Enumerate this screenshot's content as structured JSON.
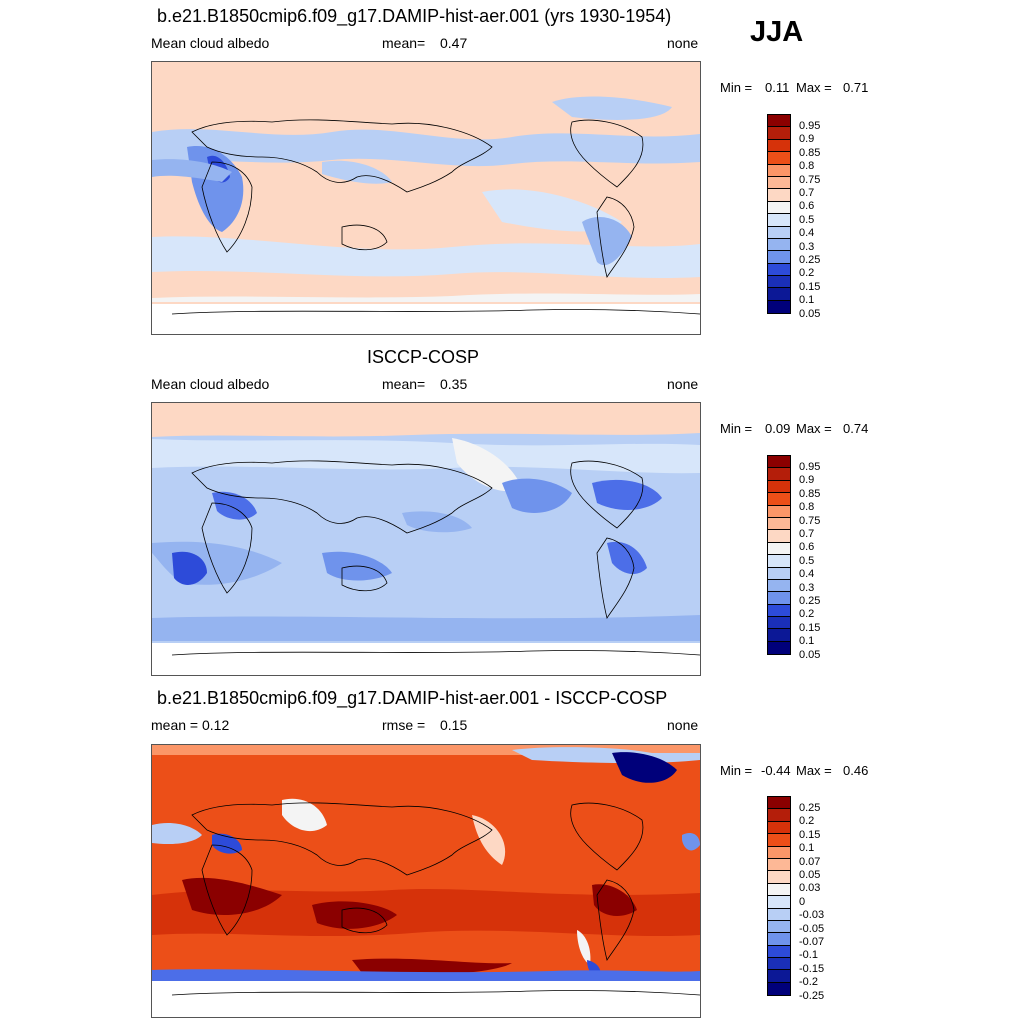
{
  "season": "JJA",
  "palettes": {
    "abs": [
      "#8b0000",
      "#b41e0a",
      "#d6320a",
      "#ec4f18",
      "#f5743f",
      "#fb9668",
      "#fdb896",
      "#fdd8c4",
      "#f4f4f4",
      "#d7e6fa",
      "#b8cff5",
      "#95b4f0",
      "#6f93ec",
      "#4c6ee8",
      "#2d4bd9",
      "#1a2fb8",
      "#0c1896",
      "#00007a"
    ],
    "diff": [
      "#8b0000",
      "#b41e0a",
      "#d6320a",
      "#ec4f18",
      "#f5743f",
      "#fb9668",
      "#fdb896",
      "#fdd8c4",
      "#f4f4f4",
      "#d7e6fa",
      "#b8cff5",
      "#95b4f0",
      "#6f93ec",
      "#4c6ee8",
      "#2d4bd9",
      "#1a2fb8",
      "#0c1896",
      "#00007a"
    ]
  },
  "panels": [
    {
      "title": "b.e21.B1850cmip6.f09_g17.DAMIP-hist-aer.001 (yrs 1930-1954)",
      "left": "Mean cloud albedo",
      "center_label": "mean=",
      "center_value": "0.47",
      "right": "none",
      "min_label": "Min =",
      "min_value": "0.11",
      "max_label": "Max =",
      "max_value": "0.71",
      "colorbar": [
        "0.95",
        "0.9",
        "0.85",
        "0.8",
        "0.75",
        "0.7",
        "0.6",
        "0.5",
        "0.4",
        "0.3",
        "0.25",
        "0.2",
        "0.15",
        "0.1",
        "0.05"
      ]
    },
    {
      "title": "ISCCP-COSP",
      "left": "Mean cloud albedo",
      "center_label": "mean=",
      "center_value": "0.35",
      "right": "none",
      "min_label": "Min =",
      "min_value": "0.09",
      "max_label": "Max =",
      "max_value": "0.74",
      "colorbar": [
        "0.95",
        "0.9",
        "0.85",
        "0.8",
        "0.75",
        "0.7",
        "0.6",
        "0.5",
        "0.4",
        "0.3",
        "0.25",
        "0.2",
        "0.15",
        "0.1",
        "0.05"
      ]
    },
    {
      "title": "b.e21.B1850cmip6.f09_g17.DAMIP-hist-aer.001 - ISCCP-COSP",
      "left": "mean =   0.12",
      "center_label": "rmse =",
      "center_value": "0.15",
      "right": "none",
      "min_label": "Min =",
      "min_value": "-0.44",
      "max_label": "Max =",
      "max_value": "0.46",
      "colorbar": [
        "0.25",
        "0.2",
        "0.15",
        "0.1",
        "0.07",
        "0.05",
        "0.03",
        "0",
        "-0.03",
        "-0.05",
        "-0.07",
        "-0.1",
        "-0.15",
        "-0.2",
        "-0.25"
      ]
    }
  ]
}
